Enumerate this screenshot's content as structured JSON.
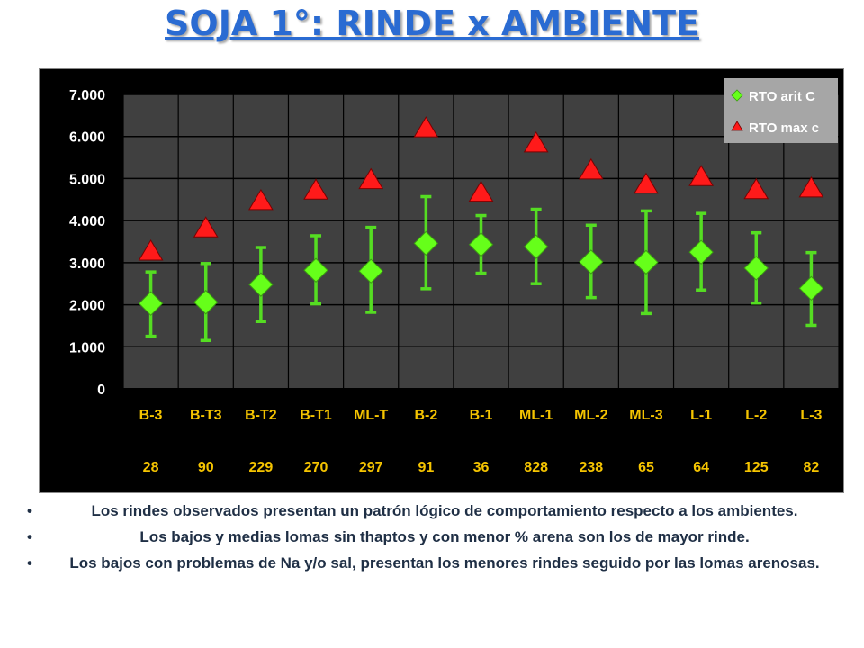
{
  "title": "SOJA 1°: RINDE x AMBIENTE",
  "bullets": [
    "Los rindes observados presentan un patrón lógico de comportamiento respecto a los ambientes.",
    "Los bajos y medias lomas sin thaptos y con menor % arena son los de mayor rinde.",
    "Los bajos con problemas de Na y/o sal, presentan los menores rindes seguido por las lomas arenosas."
  ],
  "colors": {
    "title": "#2a6bd2",
    "plot_bg": "#404040",
    "frame_bg": "#000000",
    "grid": "#000000",
    "category_text": "#f5c400",
    "axis_text": "#ffffff",
    "series_arit": "#66ff1a",
    "errorbar": "#55dd22",
    "series_max": "#ff1a1a",
    "legend_bg": "#a6a6a6"
  },
  "chart_data": {
    "type": "scatter",
    "categories": [
      "B-3",
      "B-T3",
      "B-T2",
      "B-T1",
      "ML-T",
      "B-2",
      "B-1",
      "ML-1",
      "ML-2",
      "ML-3",
      "L-1",
      "L-2",
      "L-3"
    ],
    "category_counts": [
      "28",
      "90",
      "229",
      "270",
      "297",
      "91",
      "36",
      "828",
      "238",
      "65",
      "64",
      "125",
      "82"
    ],
    "y_ticks": [
      "0",
      "1.000",
      "2.000",
      "3.000",
      "4.000",
      "5.000",
      "6.000",
      "7.000"
    ],
    "ylim": [
      0,
      7000
    ],
    "grid": true,
    "legend_position": "top-right",
    "series": [
      {
        "name": "RTO arit C",
        "marker": "diamond",
        "values": [
          2030,
          2060,
          2480,
          2820,
          2800,
          3460,
          3430,
          3380,
          3020,
          3010,
          3250,
          2870,
          2390
        ],
        "error_low": [
          1250,
          1150,
          1600,
          2020,
          1820,
          2380,
          2750,
          2500,
          2170,
          1790,
          2350,
          2040,
          1510
        ],
        "error_high": [
          2780,
          2980,
          3360,
          3640,
          3840,
          4570,
          4120,
          4270,
          3890,
          4230,
          4170,
          3710,
          3240
        ]
      },
      {
        "name": "RTO max c",
        "marker": "triangle",
        "values": [
          3250,
          3800,
          4450,
          4700,
          4950,
          6180,
          4650,
          5820,
          5180,
          4840,
          5020,
          4710,
          4750
        ]
      }
    ]
  }
}
